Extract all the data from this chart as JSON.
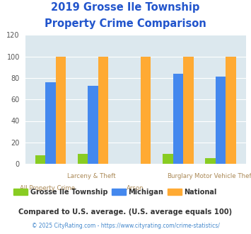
{
  "title_line1": "2019 Grosse Ile Township",
  "title_line2": "Property Crime Comparison",
  "categories": [
    "All Property Crime",
    "Larceny & Theft",
    "Arson",
    "Burglary",
    "Motor Vehicle Theft"
  ],
  "cat_top": [
    "",
    "Larceny & Theft",
    "",
    "Burglary",
    "Motor Vehicle Theft"
  ],
  "cat_bottom": [
    "All Property Crime",
    "",
    "Arson",
    "",
    ""
  ],
  "grosse_ile": [
    8,
    9,
    0,
    9,
    5
  ],
  "michigan": [
    76,
    73,
    0,
    84,
    81
  ],
  "national": [
    100,
    100,
    100,
    100,
    100
  ],
  "color_grosse": "#88cc22",
  "color_michigan": "#4488ee",
  "color_national": "#ffaa33",
  "color_bg_plot": "#dce8ee",
  "color_title": "#2255cc",
  "color_xticktop": "#aa8855",
  "color_xtickbottom": "#aa8855",
  "color_footnote": "#333333",
  "color_footer": "#4488cc",
  "ylim": [
    0,
    120
  ],
  "yticks": [
    0,
    20,
    40,
    60,
    80,
    100,
    120
  ],
  "legend_grosse": "Grosse Ile Township",
  "legend_michigan": "Michigan",
  "legend_national": "National",
  "note_text": "Compared to U.S. average. (U.S. average equals 100)",
  "footer_text": "© 2025 CityRating.com - https://www.cityrating.com/crime-statistics/"
}
